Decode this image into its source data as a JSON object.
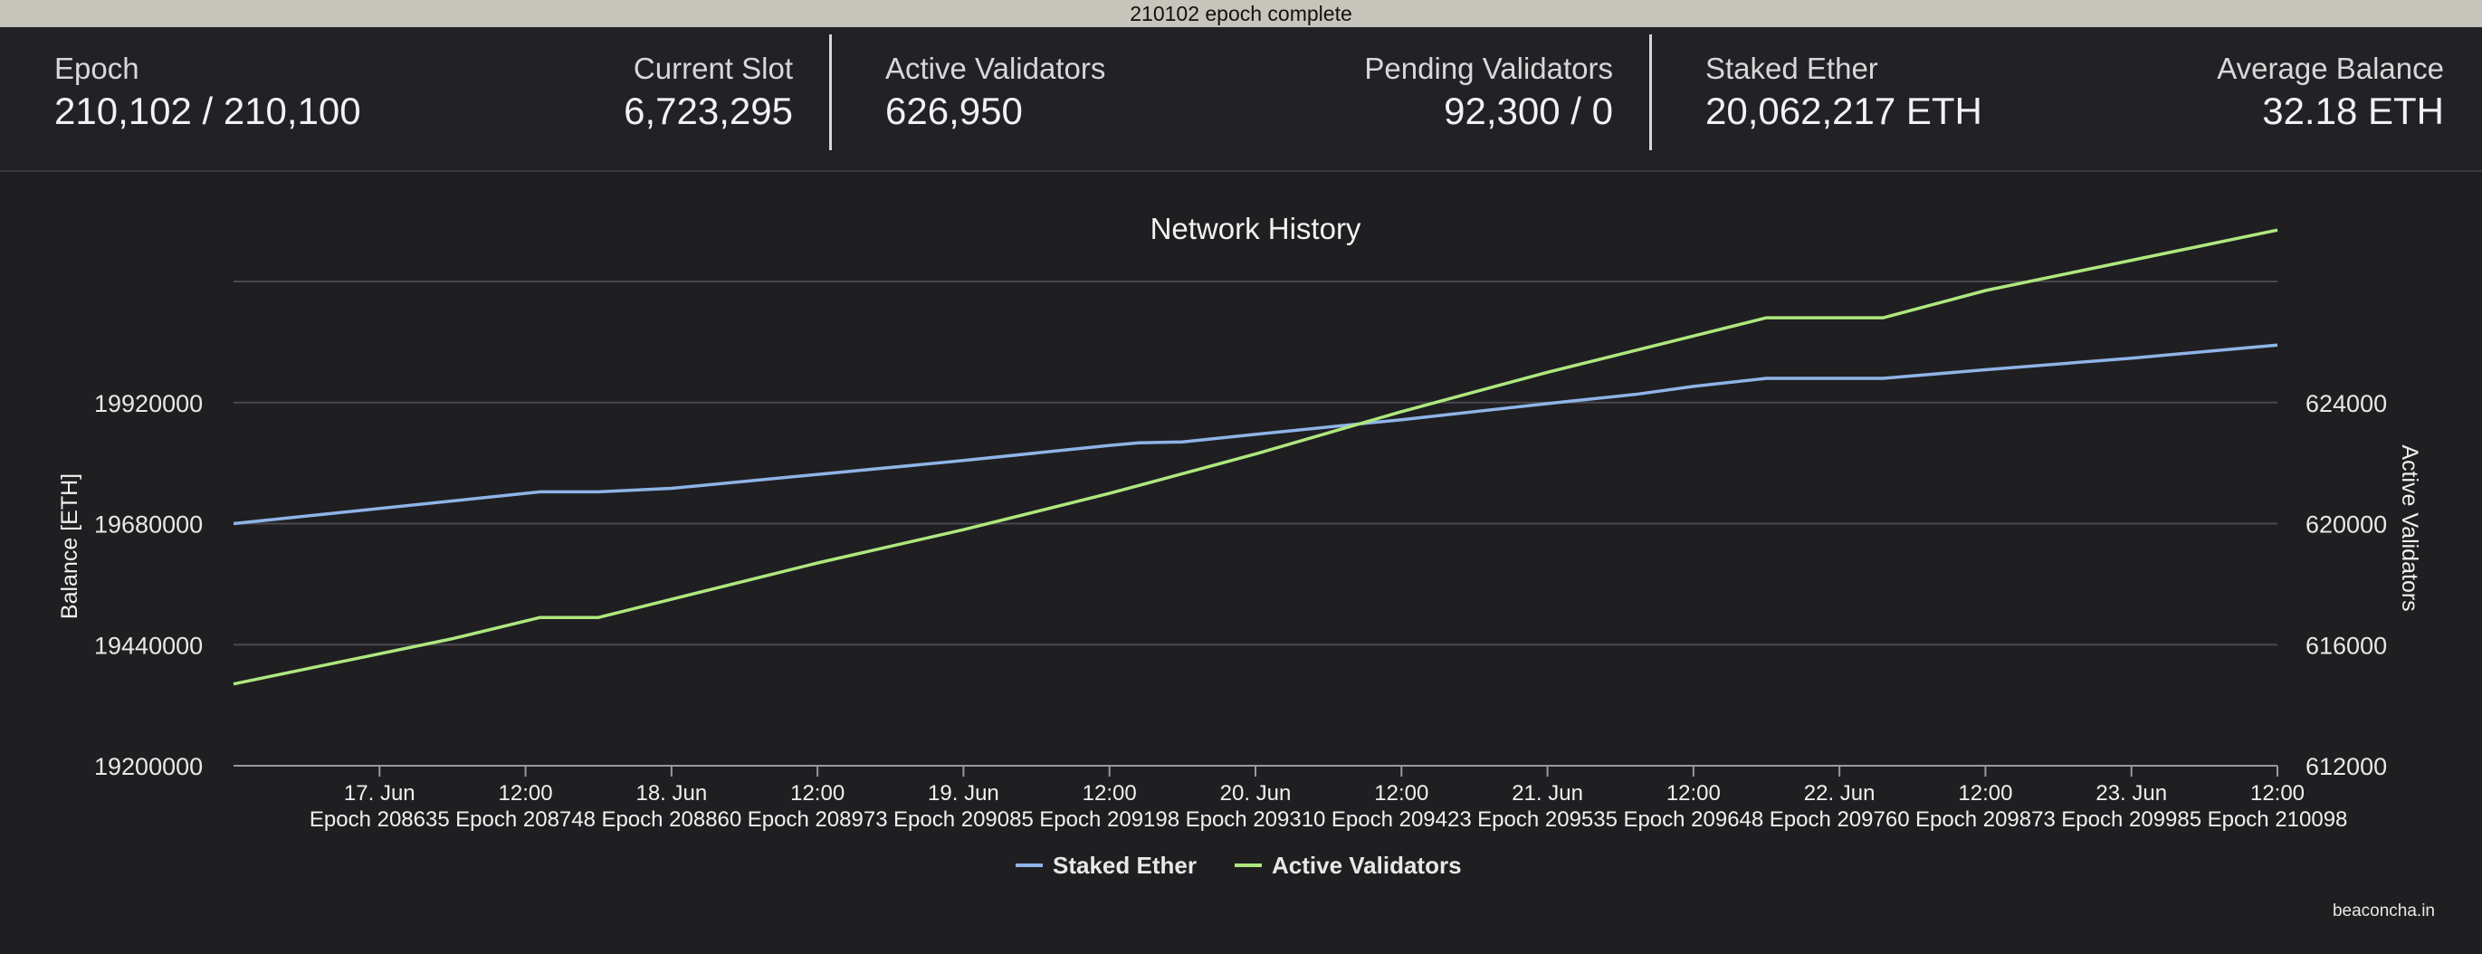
{
  "window": {
    "title": "210102 epoch complete"
  },
  "stats": {
    "epoch": {
      "label": "Epoch",
      "value": "210,102 / 210,100"
    },
    "current_slot": {
      "label": "Current Slot",
      "value": "6,723,295"
    },
    "active_validators": {
      "label": "Active Validators",
      "value": "626,950"
    },
    "pending_validators": {
      "label": "Pending Validators",
      "value": "92,300 / 0"
    },
    "staked_ether": {
      "label": "Staked Ether",
      "value": "20,062,217 ETH"
    },
    "average_balance": {
      "label": "Average Balance",
      "value": "32.18 ETH"
    }
  },
  "credit": "beaconcha.in",
  "chart_data": {
    "type": "line",
    "title": "Network History",
    "ylabel": "Balance [ETH]",
    "y2label": "Active Validators",
    "ylim": [
      19200000,
      20160000
    ],
    "y2lim": [
      612000,
      628000
    ],
    "yticks": [
      "19200000",
      "19440000",
      "19680000",
      "19920000"
    ],
    "y2ticks": [
      "612000",
      "616000",
      "620000",
      "624000"
    ],
    "xlim": [
      0,
      14
    ],
    "xticks": [
      {
        "x": 1,
        "label": "17. Jun",
        "epoch": "Epoch 208635"
      },
      {
        "x": 2,
        "label": "12:00",
        "epoch": "Epoch 208748"
      },
      {
        "x": 3,
        "label": "18. Jun",
        "epoch": "Epoch 208860"
      },
      {
        "x": 4,
        "label": "12:00",
        "epoch": "Epoch 208973"
      },
      {
        "x": 5,
        "label": "19. Jun",
        "epoch": "Epoch 209085"
      },
      {
        "x": 6,
        "label": "12:00",
        "epoch": "Epoch 209198"
      },
      {
        "x": 7,
        "label": "20. Jun",
        "epoch": "Epoch 209310"
      },
      {
        "x": 8,
        "label": "12:00",
        "epoch": "Epoch 209423"
      },
      {
        "x": 9,
        "label": "21. Jun",
        "epoch": "Epoch 209535"
      },
      {
        "x": 10,
        "label": "12:00",
        "epoch": "Epoch 209648"
      },
      {
        "x": 11,
        "label": "22. Jun",
        "epoch": "Epoch 209760"
      },
      {
        "x": 12,
        "label": "12:00",
        "epoch": "Epoch 209873"
      },
      {
        "x": 13,
        "label": "23. Jun",
        "epoch": "Epoch 209985"
      },
      {
        "x": 14,
        "label": "12:00",
        "epoch": "Epoch 210098"
      }
    ],
    "grid": true,
    "legend": "bottom-center",
    "series": [
      {
        "name": "Staked Ether",
        "color": "#8fb4e8",
        "axis": "left",
        "points": [
          [
            0,
            19680000
          ],
          [
            2.1,
            19743000
          ],
          [
            2.5,
            19743000
          ],
          [
            3,
            19750000
          ],
          [
            5,
            19805000
          ],
          [
            6,
            19835000
          ],
          [
            6.2,
            19840000
          ],
          [
            6.5,
            19842000
          ],
          [
            7,
            19857000
          ],
          [
            8,
            19886000
          ],
          [
            9,
            19918000
          ],
          [
            9.6,
            19936000
          ],
          [
            10,
            19952000
          ],
          [
            10.5,
            19968000
          ],
          [
            11,
            19968000
          ],
          [
            11.3,
            19968000
          ],
          [
            12,
            19985000
          ],
          [
            13,
            20008000
          ],
          [
            14,
            20034000
          ]
        ]
      },
      {
        "name": "Active Validators",
        "color": "#aee87e",
        "axis": "right",
        "points": [
          [
            0,
            614700
          ],
          [
            1.5,
            616200
          ],
          [
            2.1,
            616900
          ],
          [
            2.5,
            616900
          ],
          [
            3,
            617500
          ],
          [
            4,
            618700
          ],
          [
            5,
            619800
          ],
          [
            6,
            621000
          ],
          [
            7,
            622300
          ],
          [
            8,
            623700
          ],
          [
            9,
            625000
          ],
          [
            10,
            626200
          ],
          [
            10.5,
            626800
          ],
          [
            11,
            626800
          ],
          [
            11.3,
            626800
          ],
          [
            12,
            627700
          ],
          [
            13,
            628700
          ],
          [
            14,
            629700
          ]
        ]
      }
    ]
  }
}
